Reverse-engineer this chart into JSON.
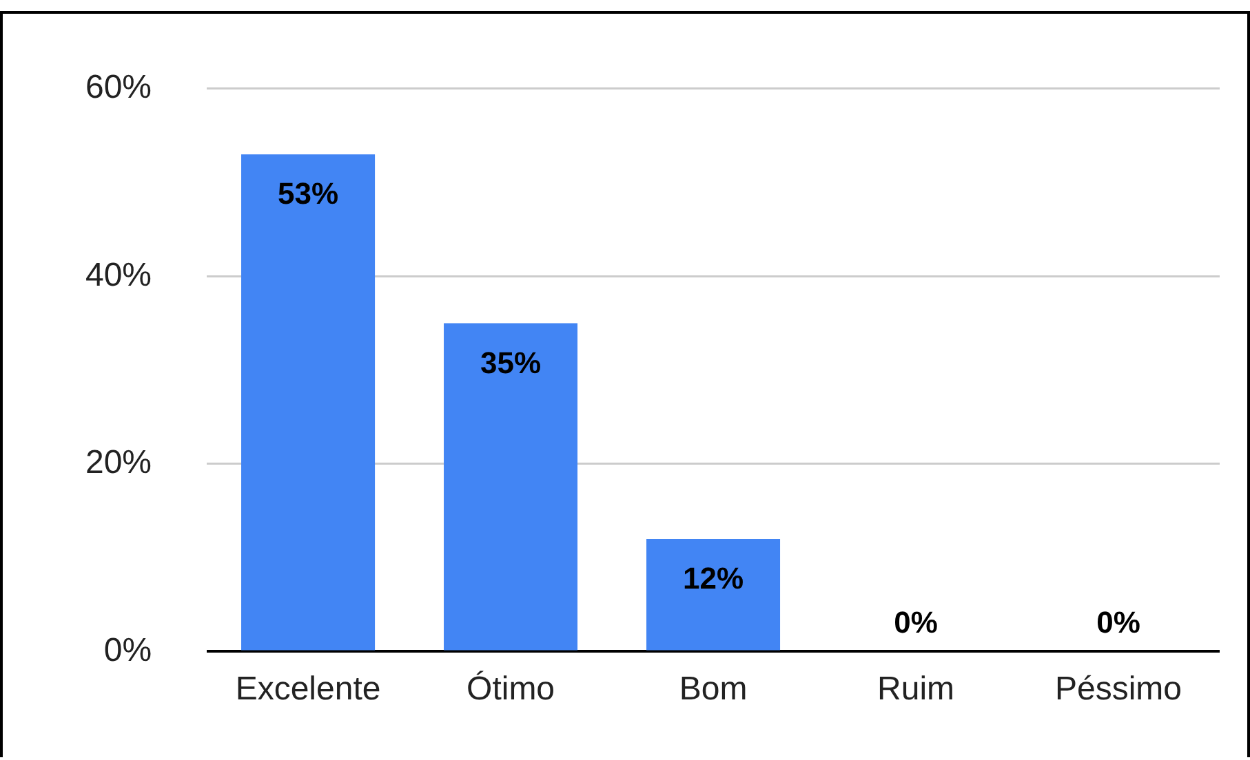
{
  "chart_data": {
    "type": "bar",
    "categories": [
      "Excelente",
      "Ótimo",
      "Bom",
      "Ruim",
      "Péssimo"
    ],
    "values": [
      53,
      35,
      12,
      0,
      0
    ],
    "value_labels": [
      "53%",
      "35%",
      "12%",
      "0%",
      "0%"
    ],
    "color": "#4285f4",
    "ylim": [
      0,
      60
    ],
    "yticks": [
      {
        "value": 0,
        "label": "0%"
      },
      {
        "value": 20,
        "label": "20%"
      },
      {
        "value": 40,
        "label": "40%"
      },
      {
        "value": 60,
        "label": "60%"
      }
    ],
    "grid": "y",
    "legend": false
  }
}
